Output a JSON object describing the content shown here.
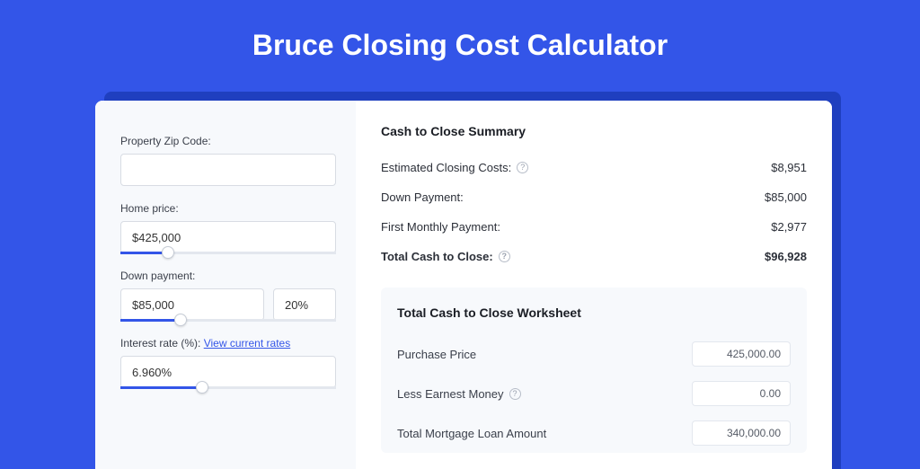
{
  "page": {
    "title": "Bruce Closing Cost Calculator",
    "background_color": "#3355e8",
    "accent_color": "#3355e8"
  },
  "form": {
    "zip": {
      "label": "Property Zip Code:",
      "value": ""
    },
    "home_price": {
      "label": "Home price:",
      "value": "$425,000",
      "slider_pct": 22
    },
    "down_payment": {
      "label": "Down payment:",
      "value": "$85,000",
      "pct_value": "20%",
      "slider_pct": 28
    },
    "interest_rate": {
      "label": "Interest rate (%):",
      "link_text": "View current rates",
      "value": "6.960%",
      "slider_pct": 38
    }
  },
  "summary": {
    "title": "Cash to Close Summary",
    "rows": [
      {
        "label": "Estimated Closing Costs:",
        "has_help": true,
        "value": "$8,951",
        "bold": false
      },
      {
        "label": "Down Payment:",
        "has_help": false,
        "value": "$85,000",
        "bold": false
      },
      {
        "label": "First Monthly Payment:",
        "has_help": false,
        "value": "$2,977",
        "bold": false
      },
      {
        "label": "Total Cash to Close:",
        "has_help": true,
        "value": "$96,928",
        "bold": true
      }
    ]
  },
  "worksheet": {
    "title": "Total Cash to Close Worksheet",
    "rows": [
      {
        "label": "Purchase Price",
        "has_help": false,
        "value": "425,000.00"
      },
      {
        "label": "Less Earnest Money",
        "has_help": true,
        "value": "0.00"
      },
      {
        "label": "Total Mortgage Loan Amount",
        "has_help": false,
        "value": "340,000.00"
      }
    ]
  }
}
